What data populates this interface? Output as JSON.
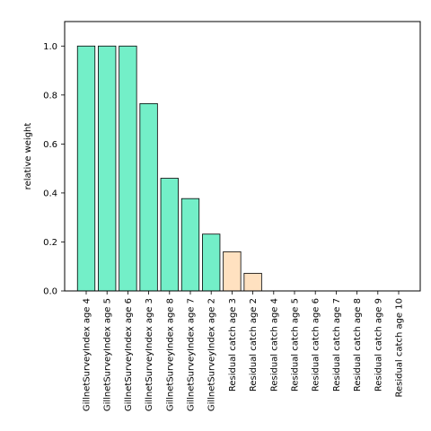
{
  "chart_data": {
    "type": "bar",
    "title": "",
    "xlabel": "",
    "ylabel": "relative weight",
    "ylim": [
      0,
      1.1
    ],
    "yticks": [
      0.0,
      0.2,
      0.4,
      0.6,
      0.8,
      1.0
    ],
    "ytick_labels": [
      "0.0",
      "0.2",
      "0.4",
      "0.6",
      "0.8",
      "1.0"
    ],
    "grid": false,
    "categories": [
      "GillnetSurveyIndex age 4",
      "GillnetSurveyIndex age 5",
      "GillnetSurveyIndex age 6",
      "GillnetSurveyIndex age 3",
      "GillnetSurveyIndex age 8",
      "GillnetSurveyIndex age 7",
      "GillnetSurveyIndex age 2",
      "Residual catch age 3",
      "Residual catch age 2",
      "Residual catch age 4",
      "Residual catch age 5",
      "Residual catch age 6",
      "Residual catch age 7",
      "Residual catch age 8",
      "Residual catch age 9",
      "Residual catch age 10"
    ],
    "values": [
      1.0,
      1.0,
      1.0,
      0.765,
      0.46,
      0.377,
      0.232,
      0.16,
      0.072,
      0.0,
      0.0,
      0.0,
      0.0,
      0.0,
      0.0,
      0.0
    ],
    "bar_colors": [
      "#73efc8",
      "#73efc8",
      "#73efc8",
      "#73efc8",
      "#73efc8",
      "#73efc8",
      "#73efc8",
      "#ffe1c0",
      "#ffe1c0",
      "#ffe1c0",
      "#ffe1c0",
      "#ffe1c0",
      "#ffe1c0",
      "#ffe1c0",
      "#ffe1c0",
      "#ffe1c0"
    ],
    "edge_color": "#000000"
  }
}
